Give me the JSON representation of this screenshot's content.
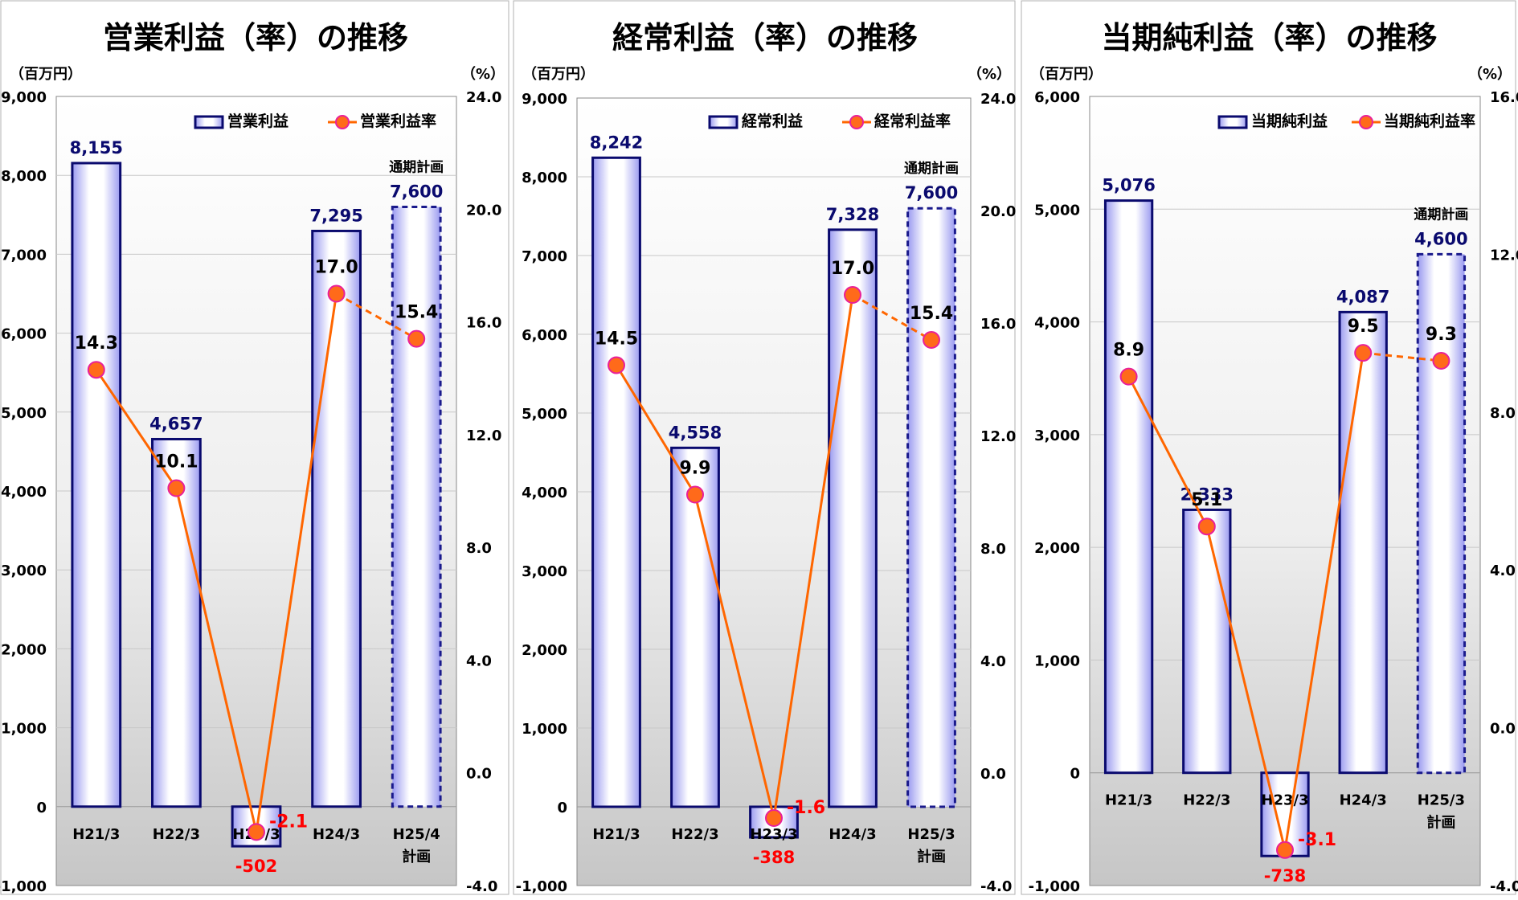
{
  "chart_data": [
    {
      "type": "bar",
      "title": "営業利益（率）の推移",
      "left_unit": "（百万円）",
      "right_unit": "（%）",
      "left_ylim": [
        -1000,
        9000
      ],
      "left_ticks": [
        "-1,000",
        "0",
        "1,000",
        "2,000",
        "3,000",
        "4,000",
        "5,000",
        "6,000",
        "7,000",
        "8,000",
        "9,000"
      ],
      "right_ylim": [
        -4.0,
        24.0
      ],
      "right_ticks": [
        "-4.0",
        "0.0",
        "4.0",
        "8.0",
        "12.0",
        "16.0",
        "20.0",
        "24.0"
      ],
      "categories": [
        [
          "H21/3"
        ],
        [
          "H22/3"
        ],
        [
          "H23/3"
        ],
        [
          "H24/3"
        ],
        [
          "H25/4",
          "計画"
        ]
      ],
      "plan_label": "通期計画",
      "grid": true,
      "legend_position": "top-right",
      "series": [
        {
          "name": "営業利益",
          "values": [
            8155,
            4657,
            -502,
            7295,
            7600
          ],
          "value_labels": [
            "8,155",
            "4,657",
            "-502",
            "7,295",
            "7,600"
          ],
          "axis": "left"
        },
        {
          "name": "営業利益率",
          "values": [
            14.3,
            10.1,
            -2.1,
            17.0,
            15.4
          ],
          "value_labels": [
            "14.3",
            "10.1",
            "-2.1",
            "17.0",
            "15.4"
          ],
          "axis": "right"
        }
      ]
    },
    {
      "type": "bar",
      "title": "経常利益（率）の推移",
      "left_unit": "（百万円）",
      "right_unit": "（%）",
      "left_ylim": [
        -1000,
        9000
      ],
      "left_ticks": [
        "-1,000",
        "0",
        "1,000",
        "2,000",
        "3,000",
        "4,000",
        "5,000",
        "6,000",
        "7,000",
        "8,000",
        "9,000"
      ],
      "right_ylim": [
        -4.0,
        24.0
      ],
      "right_ticks": [
        "-4.0",
        "0.0",
        "4.0",
        "8.0",
        "12.0",
        "16.0",
        "20.0",
        "24.0"
      ],
      "categories": [
        [
          "H21/3"
        ],
        [
          "H22/3"
        ],
        [
          "H23/3"
        ],
        [
          "H24/3"
        ],
        [
          "H25/3",
          "計画"
        ]
      ],
      "plan_label": "通期計画",
      "grid": true,
      "legend_position": "top-right",
      "series": [
        {
          "name": "経常利益",
          "values": [
            8242,
            4558,
            -388,
            7328,
            7600
          ],
          "value_labels": [
            "8,242",
            "4,558",
            "-388",
            "7,328",
            "7,600"
          ],
          "axis": "left"
        },
        {
          "name": "経常利益率",
          "values": [
            14.5,
            9.9,
            -1.6,
            17.0,
            15.4
          ],
          "value_labels": [
            "14.5",
            "9.9",
            "-1.6",
            "17.0",
            "15.4"
          ],
          "axis": "right"
        }
      ]
    },
    {
      "type": "bar",
      "title": "当期純利益（率）の推移",
      "left_unit": "（百万円）",
      "right_unit": "（%）",
      "left_ylim": [
        -1000,
        6000
      ],
      "left_ticks": [
        "-1,000",
        "0",
        "1,000",
        "2,000",
        "3,000",
        "4,000",
        "5,000",
        "6,000"
      ],
      "right_ylim": [
        -4.0,
        16.0
      ],
      "right_ticks": [
        "-4.0",
        "0.0",
        "4.0",
        "8.0",
        "12.0",
        "16.0"
      ],
      "categories": [
        [
          "H21/3"
        ],
        [
          "H22/3"
        ],
        [
          "H23/3"
        ],
        [
          "H24/3"
        ],
        [
          "H25/3",
          "計画"
        ]
      ],
      "plan_label": "通期計画",
      "grid": true,
      "legend_position": "top-right",
      "series": [
        {
          "name": "当期純利益",
          "values": [
            5076,
            2333,
            -738,
            4087,
            4600
          ],
          "value_labels": [
            "5,076",
            "2,333",
            "-738",
            "4,087",
            "4,600"
          ],
          "axis": "left"
        },
        {
          "name": "当期純利益率",
          "values": [
            8.9,
            5.1,
            -3.1,
            9.5,
            9.3
          ],
          "value_labels": [
            "8.9",
            "5.1",
            "-3.1",
            "9.5",
            "9.3"
          ],
          "axis": "right"
        }
      ]
    }
  ],
  "colors": {
    "bar_border": "#0a0a6e",
    "bar_plan_border": "#1a1a8c",
    "bar_value_text": "#0a0a6e",
    "negative_text": "#ff0000",
    "line": "#ff6600",
    "marker_fill": "#ff6a1a",
    "marker_stroke": "#e8209a"
  }
}
